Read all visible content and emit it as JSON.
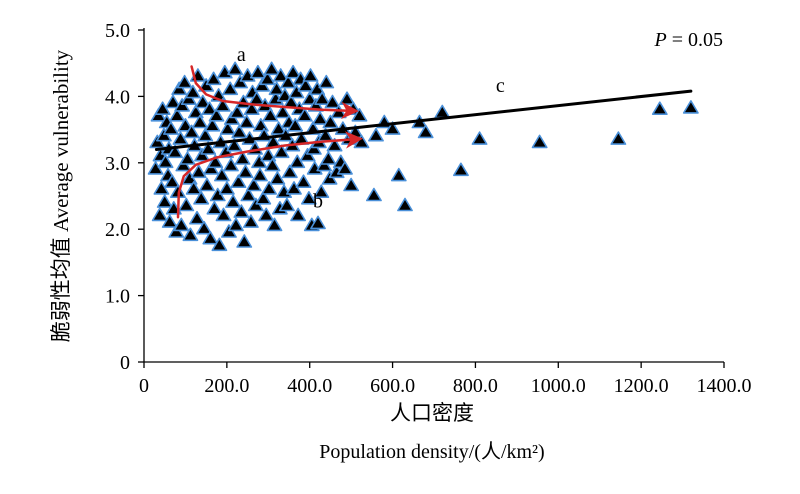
{
  "chart_data": {
    "type": "scatter",
    "title": "",
    "ylabel": "脆弱性均值 Average vulnerability",
    "xlabel_cn": "人口密度",
    "xlabel_en": "Population density/(人/km²)",
    "xlim": [
      0,
      1400
    ],
    "ylim": [
      0,
      5
    ],
    "x_ticks": [
      0,
      200,
      400,
      600,
      800,
      1000,
      1200,
      1400
    ],
    "x_tick_labels": [
      "0",
      "200.0",
      "400.0",
      "600.0",
      "800.0",
      "1000.0",
      "1200.0",
      "1400.0"
    ],
    "y_ticks": [
      0,
      1,
      2,
      3,
      4,
      5
    ],
    "y_tick_labels": [
      "0",
      "1.0",
      "2.0",
      "3.0",
      "4.0",
      "5.0"
    ],
    "grid": false,
    "marker": "triangle",
    "marker_fill": "#000000",
    "marker_edge": "#4a90d9",
    "points": [
      [
        28,
        2.9
      ],
      [
        32,
        3.3
      ],
      [
        35,
        3.7
      ],
      [
        38,
        2.2
      ],
      [
        40,
        3.1
      ],
      [
        42,
        2.6
      ],
      [
        45,
        3.8
      ],
      [
        48,
        3.4
      ],
      [
        50,
        2.4
      ],
      [
        52,
        3.0
      ],
      [
        55,
        3.6
      ],
      [
        58,
        2.8
      ],
      [
        60,
        3.2
      ],
      [
        62,
        2.1
      ],
      [
        65,
        3.5
      ],
      [
        68,
        2.7
      ],
      [
        70,
        3.9
      ],
      [
        72,
        2.3
      ],
      [
        75,
        3.15
      ],
      [
        78,
        1.95
      ],
      [
        80,
        3.7
      ],
      [
        82,
        2.55
      ],
      [
        85,
        4.1
      ],
      [
        88,
        3.35
      ],
      [
        90,
        2.05
      ],
      [
        92,
        3.85
      ],
      [
        95,
        2.95
      ],
      [
        98,
        4.2
      ],
      [
        100,
        3.55
      ],
      [
        102,
        2.35
      ],
      [
        105,
        3.05
      ],
      [
        108,
        3.95
      ],
      [
        110,
        2.75
      ],
      [
        112,
        1.9
      ],
      [
        115,
        3.45
      ],
      [
        118,
        4.05
      ],
      [
        120,
        2.6
      ],
      [
        122,
        3.25
      ],
      [
        125,
        3.75
      ],
      [
        128,
        2.15
      ],
      [
        130,
        4.3
      ],
      [
        132,
        2.85
      ],
      [
        135,
        3.6
      ],
      [
        138,
        2.45
      ],
      [
        140,
        3.1
      ],
      [
        142,
        3.9
      ],
      [
        145,
        2.0
      ],
      [
        148,
        3.4
      ],
      [
        150,
        4.15
      ],
      [
        152,
        2.65
      ],
      [
        155,
        3.2
      ],
      [
        158,
        3.8
      ],
      [
        160,
        1.85
      ],
      [
        162,
        2.9
      ],
      [
        165,
        3.55
      ],
      [
        168,
        4.25
      ],
      [
        170,
        2.3
      ],
      [
        172,
        3.0
      ],
      [
        175,
        3.7
      ],
      [
        178,
        2.5
      ],
      [
        180,
        4.0
      ],
      [
        182,
        1.75
      ],
      [
        185,
        3.3
      ],
      [
        188,
        2.8
      ],
      [
        190,
        3.85
      ],
      [
        192,
        2.2
      ],
      [
        195,
        4.35
      ],
      [
        198,
        3.15
      ],
      [
        200,
        2.6
      ],
      [
        202,
        3.5
      ],
      [
        205,
        1.95
      ],
      [
        208,
        4.1
      ],
      [
        210,
        2.95
      ],
      [
        212,
        3.65
      ],
      [
        215,
        2.4
      ],
      [
        218,
        3.25
      ],
      [
        220,
        4.4
      ],
      [
        222,
        2.05
      ],
      [
        225,
        3.75
      ],
      [
        228,
        2.7
      ],
      [
        230,
        3.45
      ],
      [
        232,
        4.2
      ],
      [
        235,
        2.25
      ],
      [
        238,
        3.05
      ],
      [
        240,
        3.9
      ],
      [
        242,
        1.8
      ],
      [
        245,
        2.85
      ],
      [
        248,
        3.6
      ],
      [
        250,
        4.3
      ],
      [
        252,
        2.5
      ],
      [
        255,
        3.35
      ],
      [
        258,
        2.1
      ],
      [
        260,
        3.8
      ],
      [
        262,
        4.05
      ],
      [
        265,
        2.65
      ],
      [
        268,
        3.2
      ],
      [
        270,
        2.35
      ],
      [
        272,
        3.95
      ],
      [
        275,
        4.35
      ],
      [
        278,
        3.0
      ],
      [
        280,
        2.8
      ],
      [
        282,
        3.55
      ],
      [
        285,
        4.15
      ],
      [
        288,
        2.45
      ],
      [
        290,
        3.4
      ],
      [
        292,
        3.85
      ],
      [
        295,
        2.2
      ],
      [
        298,
        4.25
      ],
      [
        300,
        3.1
      ],
      [
        302,
        2.6
      ],
      [
        305,
        3.7
      ],
      [
        308,
        4.4
      ],
      [
        310,
        2.95
      ],
      [
        312,
        3.3
      ],
      [
        315,
        2.05
      ],
      [
        318,
        3.95
      ],
      [
        320,
        4.1
      ],
      [
        322,
        2.75
      ],
      [
        325,
        3.5
      ],
      [
        328,
        2.3
      ],
      [
        330,
        4.3
      ],
      [
        332,
        3.15
      ],
      [
        335,
        3.75
      ],
      [
        338,
        2.55
      ],
      [
        340,
        4.0
      ],
      [
        342,
        3.4
      ],
      [
        345,
        2.35
      ],
      [
        348,
        4.2
      ],
      [
        350,
        3.6
      ],
      [
        352,
        2.85
      ],
      [
        355,
        3.9
      ],
      [
        358,
        3.25
      ],
      [
        360,
        4.35
      ],
      [
        362,
        2.6
      ],
      [
        365,
        3.55
      ],
      [
        368,
        4.05
      ],
      [
        370,
        3.0
      ],
      [
        372,
        2.2
      ],
      [
        375,
        3.8
      ],
      [
        378,
        4.25
      ],
      [
        380,
        3.35
      ],
      [
        385,
        2.7
      ],
      [
        388,
        3.7
      ],
      [
        390,
        4.15
      ],
      [
        395,
        3.1
      ],
      [
        398,
        2.45
      ],
      [
        400,
        3.95
      ],
      [
        402,
        4.3
      ],
      [
        405,
        2.05
      ],
      [
        408,
        3.5
      ],
      [
        410,
        3.2
      ],
      [
        412,
        2.9
      ],
      [
        415,
        3.85
      ],
      [
        418,
        4.1
      ],
      [
        420,
        2.08
      ],
      [
        422,
        3.3
      ],
      [
        425,
        3.65
      ],
      [
        428,
        2.55
      ],
      [
        430,
        3.95
      ],
      [
        435,
        2.95
      ],
      [
        438,
        3.4
      ],
      [
        440,
        4.2
      ],
      [
        445,
        3.05
      ],
      [
        448,
        2.75
      ],
      [
        450,
        3.6
      ],
      [
        455,
        3.9
      ],
      [
        460,
        3.25
      ],
      [
        465,
        2.85
      ],
      [
        470,
        3.75
      ],
      [
        475,
        3.0
      ],
      [
        480,
        3.5
      ],
      [
        485,
        2.9
      ],
      [
        490,
        3.95
      ],
      [
        495,
        3.35
      ],
      [
        500,
        2.65
      ],
      [
        505,
        3.8
      ],
      [
        510,
        3.45
      ],
      [
        520,
        3.7
      ],
      [
        525,
        3.3
      ],
      [
        555,
        2.5
      ],
      [
        560,
        3.4
      ],
      [
        580,
        3.6
      ],
      [
        600,
        3.5
      ],
      [
        615,
        2.8
      ],
      [
        630,
        2.35
      ],
      [
        665,
        3.6
      ],
      [
        680,
        3.45
      ],
      [
        720,
        3.75
      ],
      [
        765,
        2.88
      ],
      [
        810,
        3.35
      ],
      [
        955,
        3.3
      ],
      [
        1145,
        3.35
      ],
      [
        1245,
        3.8
      ],
      [
        1320,
        3.82
      ]
    ],
    "trend_line": {
      "label": "c",
      "x": [
        30,
        1320
      ],
      "y": [
        3.2,
        4.08
      ],
      "color": "#000000"
    },
    "arrows": [
      {
        "label": "a",
        "color": "#d62728",
        "points": [
          [
            115,
            4.45
          ],
          [
            125,
            4.2
          ],
          [
            150,
            4.03
          ],
          [
            190,
            3.93
          ],
          [
            260,
            3.88
          ],
          [
            340,
            3.84
          ],
          [
            430,
            3.8
          ],
          [
            510,
            3.78
          ]
        ]
      },
      {
        "label": "b",
        "color": "#d62728",
        "points": [
          [
            82,
            2.18
          ],
          [
            84,
            2.55
          ],
          [
            96,
            2.8
          ],
          [
            125,
            2.97
          ],
          [
            175,
            3.08
          ],
          [
            250,
            3.17
          ],
          [
            340,
            3.26
          ],
          [
            430,
            3.32
          ],
          [
            520,
            3.36
          ]
        ]
      }
    ],
    "annotations": [
      {
        "text": "a",
        "x": 235,
        "y": 4.62
      },
      {
        "text": "b",
        "x": 420,
        "y": 2.42
      },
      {
        "text": "c",
        "x": 860,
        "y": 4.16
      }
    ],
    "p_value": {
      "prefix": "P",
      "rest": " = 0.05"
    }
  }
}
